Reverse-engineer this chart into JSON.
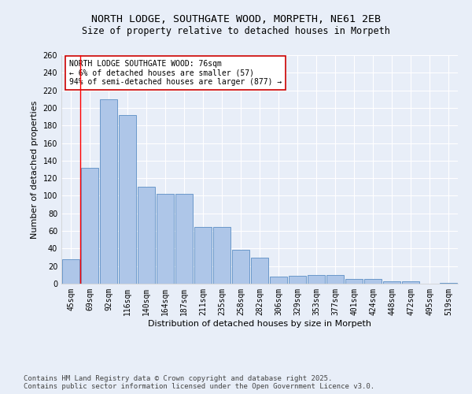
{
  "title_line1": "NORTH LODGE, SOUTHGATE WOOD, MORPETH, NE61 2EB",
  "title_line2": "Size of property relative to detached houses in Morpeth",
  "categories": [
    "45sqm",
    "69sqm",
    "92sqm",
    "116sqm",
    "140sqm",
    "164sqm",
    "187sqm",
    "211sqm",
    "235sqm",
    "258sqm",
    "282sqm",
    "306sqm",
    "329sqm",
    "353sqm",
    "377sqm",
    "401sqm",
    "424sqm",
    "448sqm",
    "472sqm",
    "495sqm",
    "519sqm"
  ],
  "values": [
    28,
    132,
    210,
    192,
    110,
    102,
    102,
    65,
    65,
    39,
    30,
    8,
    9,
    10,
    10,
    5,
    5,
    3,
    3,
    0,
    1
  ],
  "bar_color": "#aec6e8",
  "bar_edge_color": "#5b8ec4",
  "ylabel": "Number of detached properties",
  "xlabel": "Distribution of detached houses by size in Morpeth",
  "ylim": [
    0,
    260
  ],
  "yticks": [
    0,
    20,
    40,
    60,
    80,
    100,
    120,
    140,
    160,
    180,
    200,
    220,
    240,
    260
  ],
  "vline_x": 1,
  "vline_color": "#ff0000",
  "annotation_title": "NORTH LODGE SOUTHGATE WOOD: 76sqm",
  "annotation_line2": "← 6% of detached houses are smaller (57)",
  "annotation_line3": "94% of semi-detached houses are larger (877) →",
  "annotation_box_color": "#ffffff",
  "annotation_box_edgecolor": "#cc0000",
  "footer_line1": "Contains HM Land Registry data © Crown copyright and database right 2025.",
  "footer_line2": "Contains public sector information licensed under the Open Government Licence v3.0.",
  "background_color": "#e8eef8",
  "grid_color": "#ffffff",
  "title_fontsize": 9.5,
  "subtitle_fontsize": 8.5,
  "axis_label_fontsize": 8,
  "tick_fontsize": 7,
  "annotation_fontsize": 7,
  "footer_fontsize": 6.5
}
